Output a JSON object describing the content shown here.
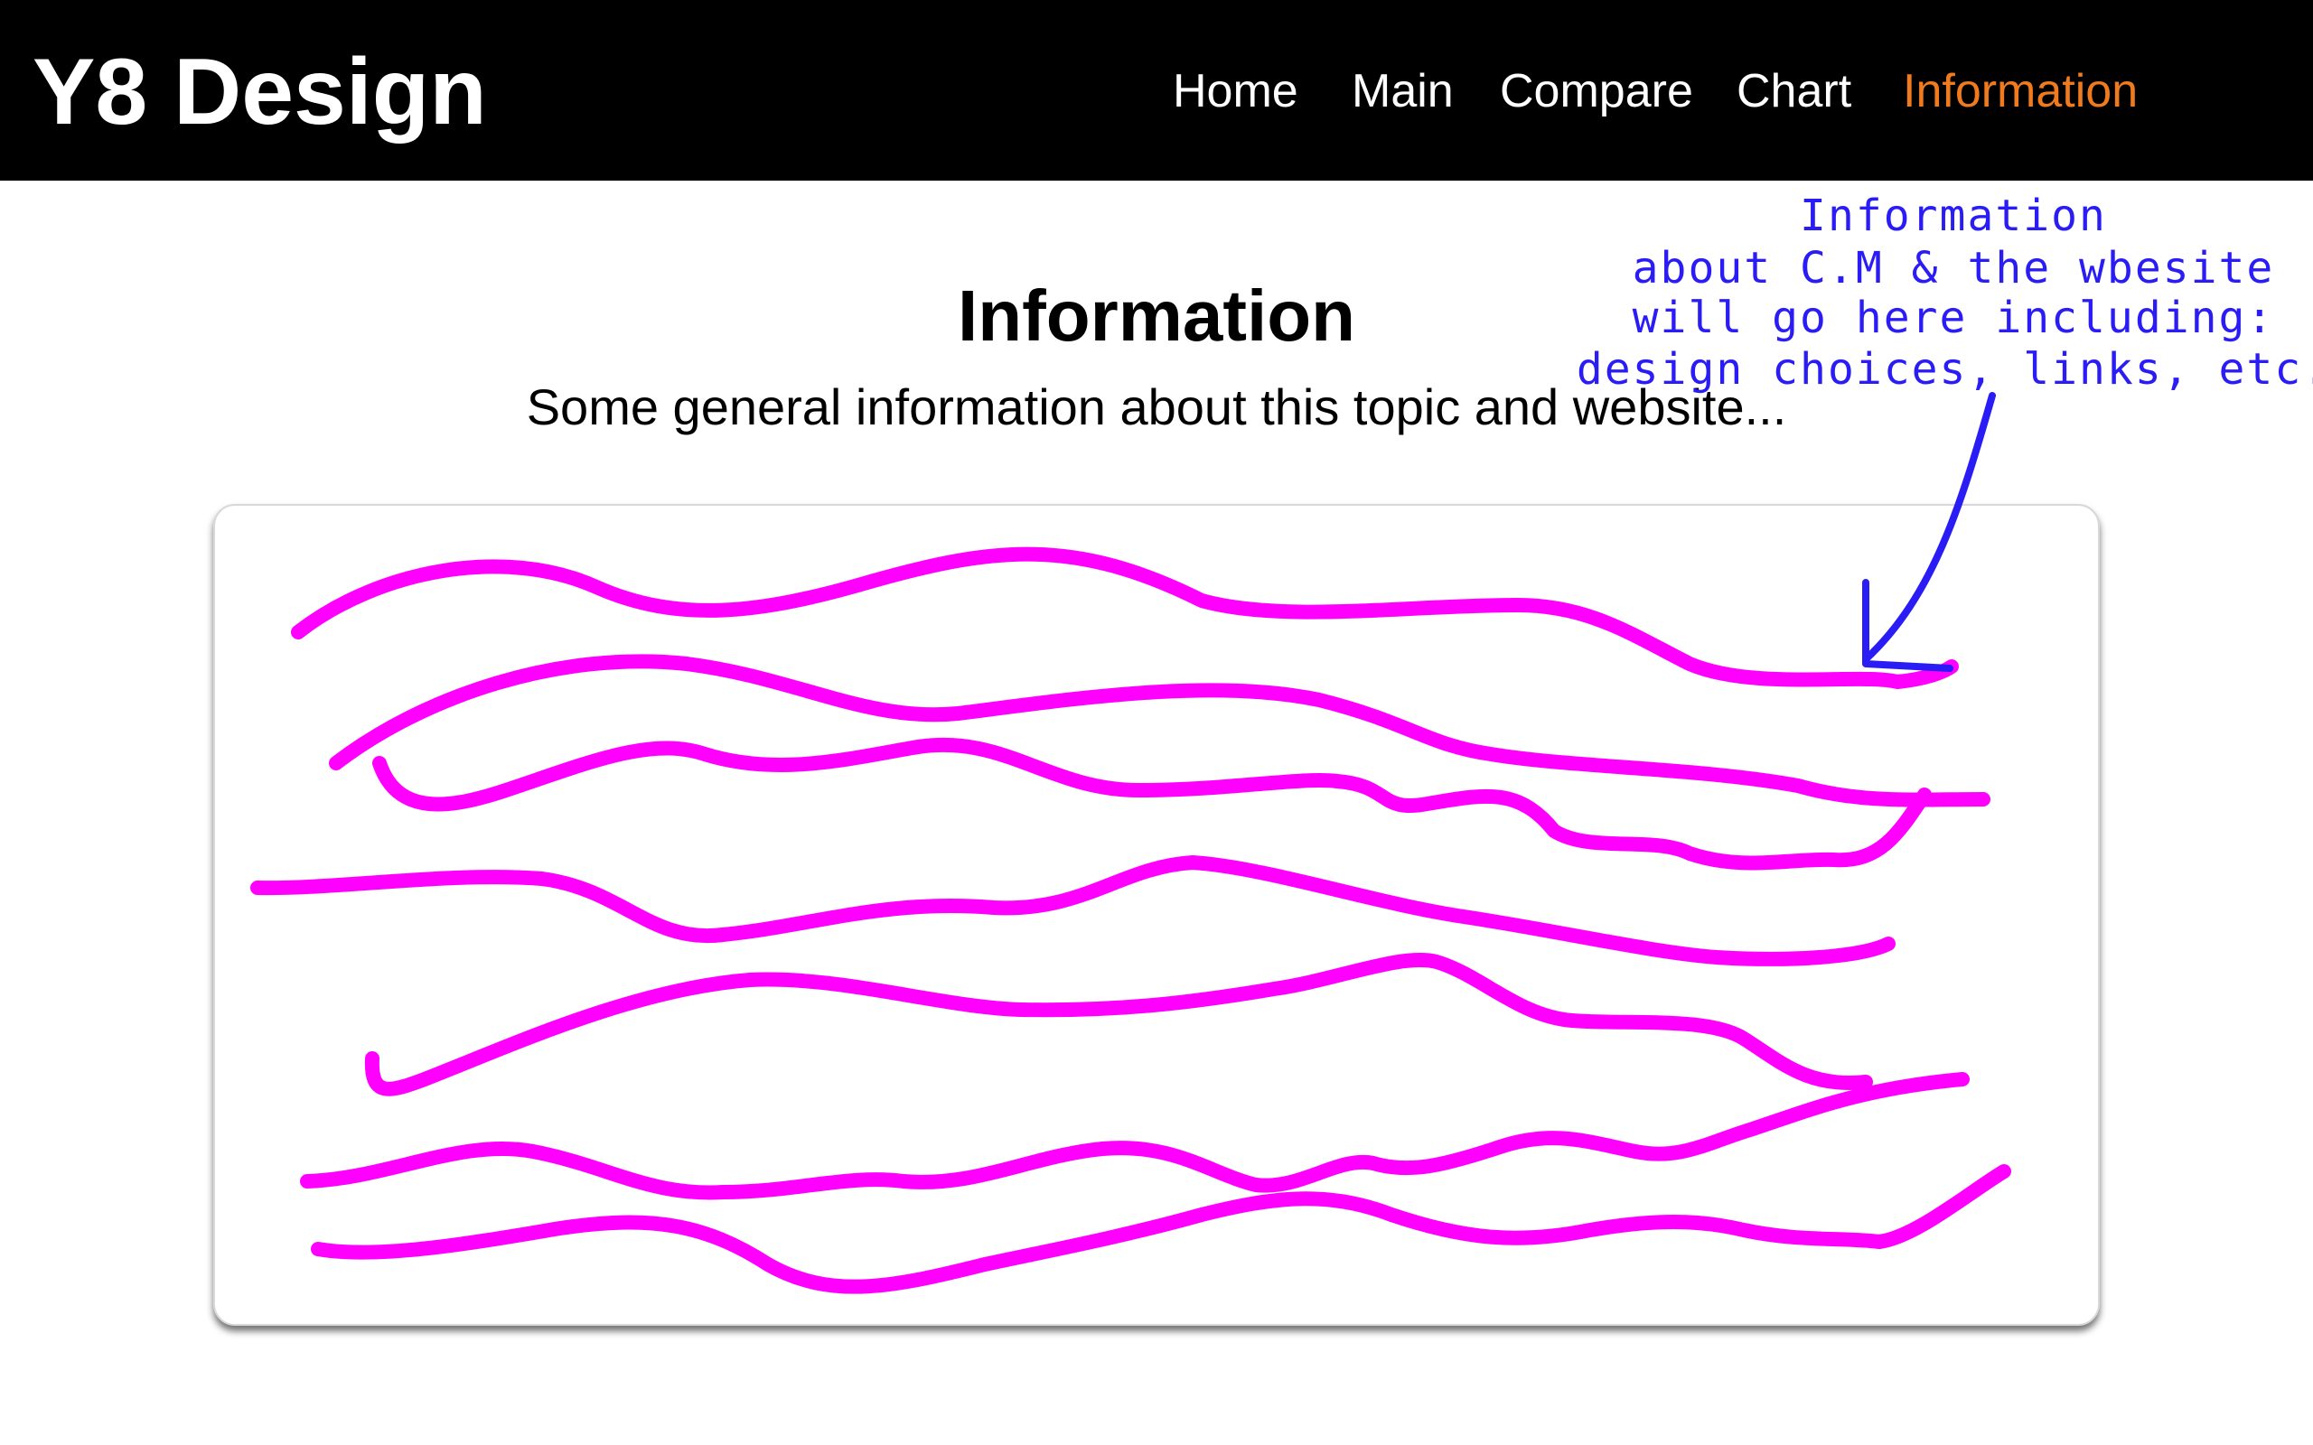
{
  "header": {
    "brand": "Y8 Design",
    "nav": [
      {
        "label": "Home",
        "active": false
      },
      {
        "label": "Main",
        "active": false
      },
      {
        "label": "Compare",
        "active": false
      },
      {
        "label": "Chart",
        "active": false
      },
      {
        "label": "Information",
        "active": true
      }
    ],
    "background_color": "#000000",
    "active_color": "#f07a1e"
  },
  "main": {
    "title": "Information",
    "subtitle": "Some general information about this topic and website..."
  },
  "annotation": {
    "lines": [
      "Information",
      "about C.M & the wbesite",
      "will go here including:",
      "design choices, links, etc."
    ],
    "color": "#2a1cf5"
  },
  "scribble_color": "#ff00ff"
}
